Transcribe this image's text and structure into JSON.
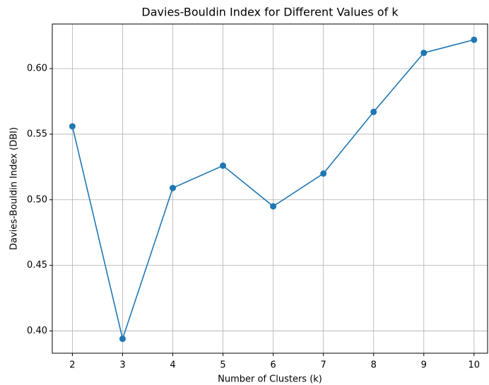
{
  "chart_data": {
    "type": "line",
    "title": "Davies-Bouldin Index for Different Values of k",
    "xlabel": "Number of Clusters (k)",
    "ylabel": "Davies-Bouldin Index (DBI)",
    "x": [
      2,
      3,
      4,
      5,
      6,
      7,
      8,
      9,
      10
    ],
    "series": [
      {
        "name": "DBI",
        "color": "#1f77b4",
        "values": [
          0.556,
          0.394,
          0.509,
          0.526,
          0.495,
          0.52,
          0.567,
          0.612,
          0.622
        ]
      }
    ],
    "xlim": [
      1.6,
      10.27
    ],
    "ylim": [
      0.383,
      0.634
    ],
    "xticks": [
      2,
      3,
      4,
      5,
      6,
      7,
      8,
      9,
      10
    ],
    "yticks": [
      {
        "value": 0.4,
        "label": "0.40"
      },
      {
        "value": 0.45,
        "label": "0.45"
      },
      {
        "value": 0.5,
        "label": "0.50"
      },
      {
        "value": 0.55,
        "label": "0.55"
      },
      {
        "value": 0.6,
        "label": "0.60"
      }
    ],
    "grid": true
  }
}
